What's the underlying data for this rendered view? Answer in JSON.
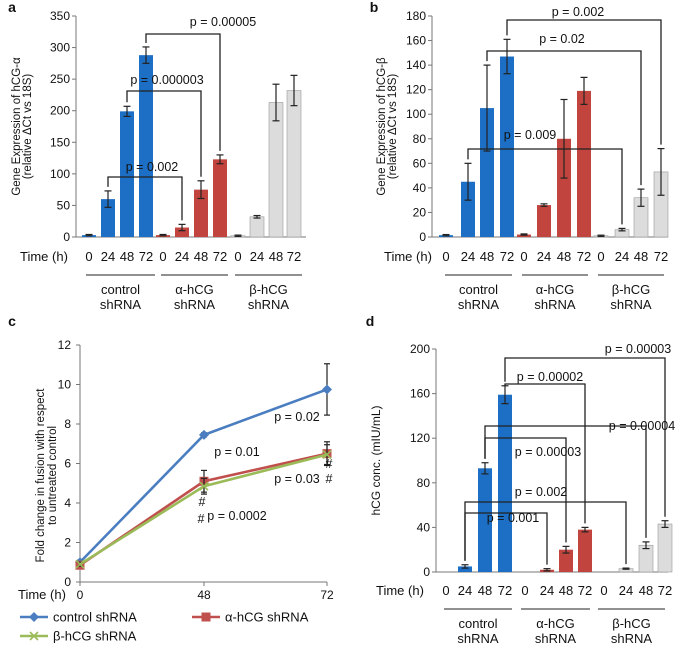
{
  "chart_data": [
    {
      "panel": "a",
      "type": "bar",
      "ylabel": [
        "Gene Expression of hCG-α",
        "(relative ΔCt vs 18S)"
      ],
      "ylim": [
        0,
        350
      ],
      "yticks": [
        0,
        50,
        100,
        150,
        200,
        250,
        300,
        350
      ],
      "xaxis_label": "Time (h)",
      "groups": [
        {
          "label": [
            "control",
            "shRNA"
          ],
          "color": "#1c6fc4",
          "times": [
            "0",
            "24",
            "48",
            "72"
          ],
          "values": [
            3,
            60,
            199,
            288
          ],
          "errors": [
            1,
            13,
            8,
            13
          ]
        },
        {
          "label": [
            "α-hCG",
            "shRNA"
          ],
          "color": "#c1453e",
          "times": [
            "0",
            "24",
            "48",
            "72"
          ],
          "values": [
            3,
            15,
            75,
            123
          ],
          "errors": [
            1,
            5,
            14,
            7
          ]
        },
        {
          "label": [
            "β-hCG",
            "shRNA"
          ],
          "color": "#dcdcdc",
          "times": [
            "0",
            "24",
            "48",
            "72"
          ],
          "values": [
            2,
            32,
            213,
            232
          ],
          "errors": [
            1,
            2,
            29,
            24
          ]
        }
      ],
      "annotations": [
        {
          "text": "p = 0.00005",
          "from": [
            0,
            3
          ],
          "to": [
            1,
            3
          ]
        },
        {
          "text": "p = 0.000003",
          "from": [
            0,
            2
          ],
          "to": [
            1,
            2
          ]
        },
        {
          "text": "p = 0.002",
          "from": [
            0,
            1
          ],
          "to": [
            1,
            1
          ]
        }
      ]
    },
    {
      "panel": "b",
      "type": "bar",
      "ylabel": [
        "Gene Expression of hCG-β",
        "(relative ΔCt vs 18S)"
      ],
      "ylim": [
        0,
        180
      ],
      "yticks": [
        0,
        20,
        40,
        60,
        80,
        100,
        120,
        140,
        160,
        180
      ],
      "xaxis_label": "Time (h)",
      "groups": [
        {
          "label": [
            "control",
            "shRNA"
          ],
          "color": "#1c6fc4",
          "times": [
            "0",
            "24",
            "48",
            "72"
          ],
          "values": [
            1.5,
            45,
            105,
            147
          ],
          "errors": [
            0.5,
            15,
            35,
            14
          ]
        },
        {
          "label": [
            "α-hCG",
            "shRNA"
          ],
          "color": "#c1453e",
          "times": [
            "0",
            "24",
            "48",
            "72"
          ],
          "values": [
            2,
            26,
            80,
            119
          ],
          "errors": [
            0.5,
            1,
            32,
            11
          ]
        },
        {
          "label": [
            "β-hCG",
            "shRNA"
          ],
          "color": "#dcdcdc",
          "times": [
            "0",
            "24",
            "48",
            "72"
          ],
          "values": [
            1,
            6,
            32,
            53
          ],
          "errors": [
            0.5,
            1,
            7,
            19
          ]
        }
      ],
      "annotations": [
        {
          "text": "p = 0.002",
          "from": [
            0,
            3
          ],
          "to": [
            2,
            3
          ]
        },
        {
          "text": "p = 0.02",
          "from": [
            0,
            2
          ],
          "to": [
            2,
            2
          ]
        },
        {
          "text": "p = 0.009",
          "from": [
            0,
            1
          ],
          "to": [
            2,
            1
          ]
        }
      ]
    },
    {
      "panel": "c",
      "type": "line",
      "ylabel": [
        "Fold change in fusion with respect",
        "to untreated control"
      ],
      "ylim": [
        0,
        12
      ],
      "yticks": [
        0,
        2,
        4,
        6,
        8,
        10,
        12
      ],
      "x": [
        0,
        48,
        72
      ],
      "xticks": [
        "0",
        "48",
        "72"
      ],
      "xaxis_label": "Time (h)",
      "series": [
        {
          "name": "control shRNA",
          "color": "#4a7ec0",
          "marker": "diamond",
          "values": [
            1.0,
            7.45,
            9.75
          ],
          "errors": [
            0.1,
            0.1,
            1.3
          ]
        },
        {
          "name": "α-hCG shRNA",
          "color": "#c0504d",
          "marker": "square",
          "values": [
            0.85,
            5.1,
            6.5
          ],
          "errors": [
            0.1,
            0.55,
            0.6
          ]
        },
        {
          "name": "β-hCG shRNA",
          "color": "#9bbb59",
          "marker": "x",
          "values": [
            0.9,
            4.85,
            6.45
          ],
          "errors": [
            0.1,
            0.4,
            0.5
          ]
        }
      ],
      "annotations": [
        "p = 0.01",
        "p = 0.0002",
        "p = 0.02",
        "p = 0.03",
        "#",
        "#",
        "#",
        "#"
      ]
    },
    {
      "panel": "d",
      "type": "bar",
      "ylabel": [
        "hCG conc. (mIU/mL)"
      ],
      "ylim": [
        0,
        200
      ],
      "yticks": [
        0,
        40,
        80,
        120,
        160,
        200
      ],
      "xaxis_label": "Time (h)",
      "groups": [
        {
          "label": [
            "control",
            "shRNA"
          ],
          "color": "#1c6fc4",
          "times": [
            "0",
            "24",
            "48",
            "72"
          ],
          "values": [
            null,
            5,
            93,
            159
          ],
          "errors": [
            null,
            1.5,
            5,
            8
          ]
        },
        {
          "label": [
            "α-hCG",
            "shRNA"
          ],
          "color": "#c1453e",
          "times": [
            "0",
            "24",
            "48",
            "72"
          ],
          "values": [
            null,
            2,
            20,
            38
          ],
          "errors": [
            null,
            1,
            3,
            2
          ]
        },
        {
          "label": [
            "β-hCG",
            "shRNA"
          ],
          "color": "#dcdcdc",
          "times": [
            "0",
            "24",
            "48",
            "72"
          ],
          "values": [
            null,
            3,
            24,
            43
          ],
          "errors": [
            null,
            0.5,
            3,
            3
          ]
        }
      ],
      "annotations": [
        {
          "text": "p = 0.00003",
          "from": [
            0,
            3
          ],
          "to": [
            2,
            3
          ]
        },
        {
          "text": "p = 0.00002",
          "from": [
            0,
            3
          ],
          "to": [
            1,
            3
          ]
        },
        {
          "text": "p = 0.00004",
          "from": [
            0,
            2
          ],
          "to": [
            2,
            2
          ]
        },
        {
          "text": "p = 0.00003",
          "from": [
            0,
            2
          ],
          "to": [
            1,
            2
          ]
        },
        {
          "text": "p = 0.002",
          "from": [
            0,
            1
          ],
          "to": [
            2,
            1
          ]
        },
        {
          "text": "p = 0.001",
          "from": [
            0,
            1
          ],
          "to": [
            1,
            1
          ]
        }
      ]
    }
  ]
}
